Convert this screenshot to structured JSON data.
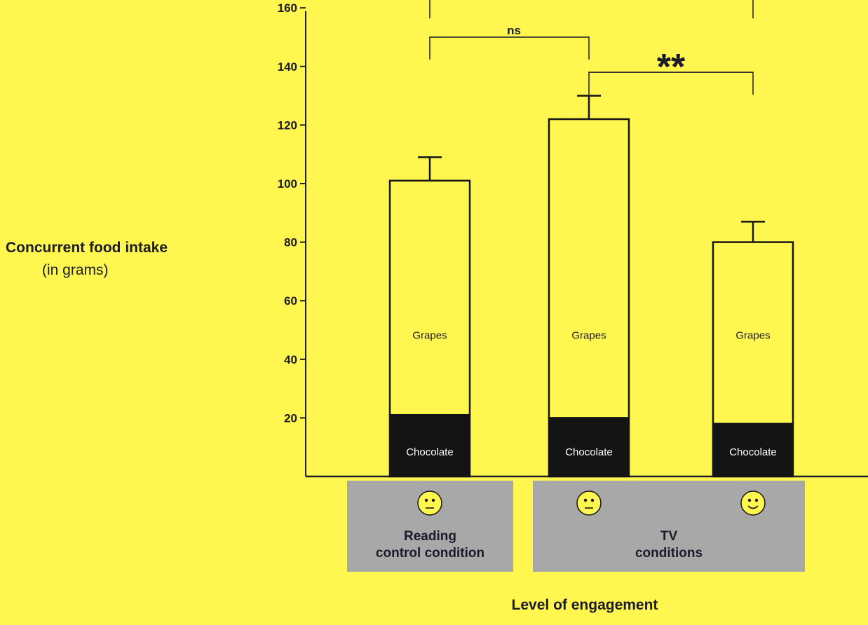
{
  "chart_data": {
    "type": "bar",
    "stacked": true,
    "ylabel": "Concurrent food intake",
    "ylabel_unit": "(in grams)",
    "xlabel": "Level of engagement",
    "ylim": [
      0,
      170
    ],
    "yticks": [
      20,
      40,
      60,
      80,
      100,
      120,
      140,
      160
    ],
    "categories": [
      "Reading control condition",
      "TV (neutral)",
      "TV (smile)"
    ],
    "series": [
      {
        "name": "Chocolate",
        "values": [
          21,
          20,
          18
        ],
        "color": "#141414",
        "label_color": "#ffffff"
      },
      {
        "name": "Grapes",
        "values": [
          80,
          102,
          62
        ],
        "color": "#fff74f",
        "label_color": "#1b1b2a"
      }
    ],
    "totals": [
      101,
      122,
      80
    ],
    "error_bars": [
      8,
      8,
      7
    ],
    "significance": [
      {
        "from": 0,
        "to": 2,
        "label": "*",
        "level": 165
      },
      {
        "from": 0,
        "to": 1,
        "label": "ns",
        "level": 150
      },
      {
        "from": 1,
        "to": 2,
        "label": "**",
        "level": 138
      }
    ],
    "groups": [
      {
        "label_line1": "Reading",
        "label_line2": "control condition",
        "icons": [
          "neutral-face"
        ]
      },
      {
        "label_line1": "TV",
        "label_line2": "conditions",
        "icons": [
          "neutral-face",
          "smiley-face"
        ]
      }
    ],
    "colors": {
      "background": "#fff74f",
      "axis": "#1b1b2a",
      "group_box": "#a8a8a8",
      "face": "#fff74f"
    }
  }
}
